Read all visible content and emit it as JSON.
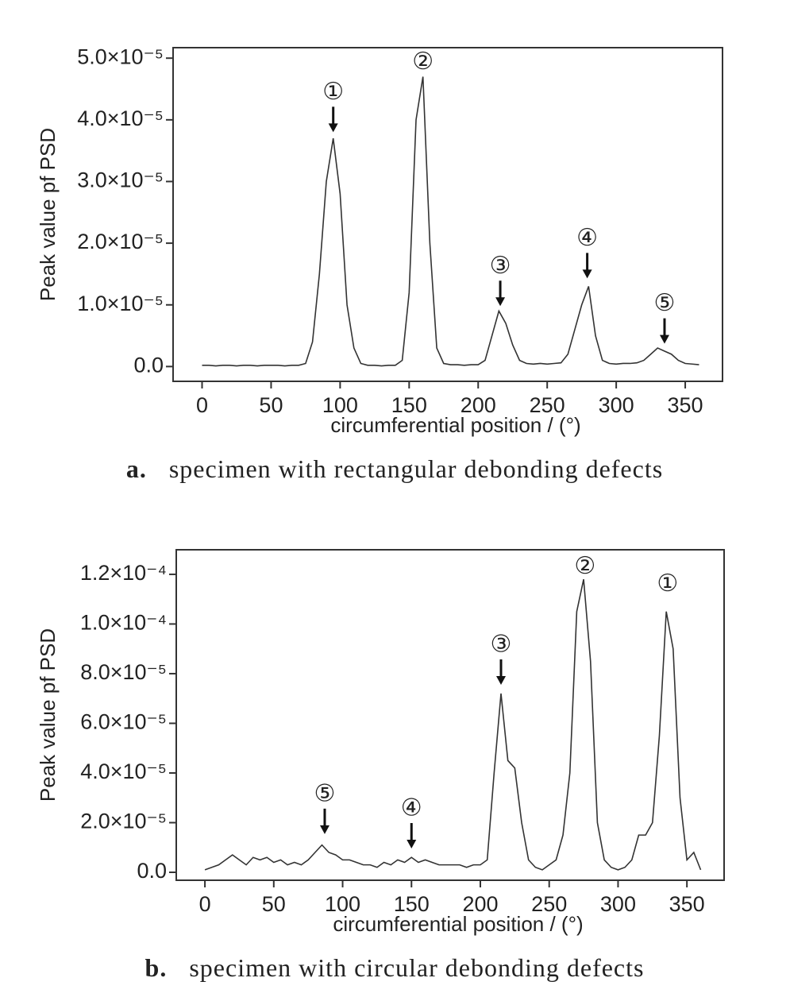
{
  "chart_data": [
    {
      "type": "line",
      "caption_label": "a.",
      "caption": "specimen with rectangular debonding defects",
      "xlabel": "circumferential position / (°)",
      "ylabel": "Peak value pf PSD",
      "xlim": [
        -21,
        377
      ],
      "ylim": [
        -2.4e-06,
        5.17e-05
      ],
      "xticks": [
        0,
        50,
        100,
        150,
        200,
        250,
        300,
        350
      ],
      "yticks": [
        {
          "value": 0,
          "label": "0.0"
        },
        {
          "value": 1e-05,
          "label": "1.0×10⁻⁵"
        },
        {
          "value": 2e-05,
          "label": "2.0×10⁻⁵"
        },
        {
          "value": 3e-05,
          "label": "3.0×10⁻⁵"
        },
        {
          "value": 4e-05,
          "label": "4.0×10⁻⁵"
        },
        {
          "value": 5e-05,
          "label": "5.0×10⁻⁵"
        }
      ],
      "x": [
        0,
        5,
        10,
        15,
        20,
        25,
        30,
        35,
        40,
        45,
        50,
        55,
        60,
        65,
        70,
        75,
        80,
        85,
        90,
        95,
        100,
        105,
        110,
        115,
        120,
        125,
        130,
        135,
        140,
        145,
        150,
        155,
        160,
        165,
        170,
        175,
        180,
        185,
        190,
        195,
        200,
        205,
        210,
        215,
        220,
        225,
        230,
        235,
        240,
        245,
        250,
        255,
        260,
        265,
        270,
        275,
        280,
        285,
        290,
        295,
        300,
        305,
        310,
        315,
        320,
        325,
        330,
        335,
        340,
        345,
        350,
        355,
        360
      ],
      "series": [
        {
          "color": "#333333",
          "values": [
            2e-07,
            2e-07,
            1e-07,
            2e-07,
            2e-07,
            1e-07,
            2e-07,
            2e-07,
            1e-07,
            2e-07,
            2e-07,
            2e-07,
            1e-07,
            2e-07,
            2e-07,
            5e-07,
            4e-06,
            1.5e-05,
            3e-05,
            3.7e-05,
            2.8e-05,
            1e-05,
            3e-06,
            5e-07,
            2e-07,
            2e-07,
            1e-07,
            2e-07,
            2e-07,
            1e-06,
            1.2e-05,
            4e-05,
            4.7e-05,
            2e-05,
            3e-06,
            5e-07,
            3e-07,
            3e-07,
            2e-07,
            3e-07,
            3e-07,
            1e-06,
            5e-06,
            9e-06,
            7e-06,
            3.5e-06,
            1e-06,
            5e-07,
            4e-07,
            5e-07,
            4e-07,
            5e-07,
            6e-07,
            2e-06,
            6e-06,
            1e-05,
            1.3e-05,
            5e-06,
            1e-06,
            5e-07,
            4e-07,
            5e-07,
            5e-07,
            6e-07,
            1e-06,
            2e-06,
            3e-06,
            2.5e-06,
            2e-06,
            1e-06,
            5e-07,
            4e-07,
            3e-07
          ]
        }
      ],
      "annotations": [
        {
          "text": "①",
          "x": 95,
          "y": 3.8e-05,
          "arrow": true
        },
        {
          "text": "②",
          "x": 160,
          "y": 4.93e-05,
          "arrow": false
        },
        {
          "text": "③",
          "x": 216,
          "y": 9.8e-06,
          "arrow": true
        },
        {
          "text": "④",
          "x": 279,
          "y": 1.43e-05,
          "arrow": true
        },
        {
          "text": "⑤",
          "x": 335,
          "y": 3.7e-06,
          "arrow": true
        }
      ]
    },
    {
      "type": "line",
      "caption_label": "b.",
      "caption": "specimen with circular debonding defects",
      "xlabel": "circumferential position / (°)",
      "ylabel": "Peak value pf PSD",
      "xlim": [
        -20.8,
        377
      ],
      "ylim": [
        -3.2e-06,
        0.0001299
      ],
      "xticks": [
        0,
        50,
        100,
        150,
        200,
        250,
        300,
        350
      ],
      "yticks": [
        {
          "value": 0,
          "label": "0.0"
        },
        {
          "value": 2e-05,
          "label": "2.0×10⁻⁵"
        },
        {
          "value": 4e-05,
          "label": "4.0×10⁻⁵"
        },
        {
          "value": 6e-05,
          "label": "6.0×10⁻⁵"
        },
        {
          "value": 8e-05,
          "label": "8.0×10⁻⁵"
        },
        {
          "value": 0.0001,
          "label": "1.0×10⁻⁴"
        },
        {
          "value": 0.00012,
          "label": "1.2×10⁻⁴"
        }
      ],
      "x": [
        0,
        5,
        10,
        15,
        20,
        25,
        30,
        35,
        40,
        45,
        50,
        55,
        60,
        65,
        70,
        75,
        80,
        85,
        90,
        95,
        100,
        105,
        110,
        115,
        120,
        125,
        130,
        135,
        140,
        145,
        150,
        155,
        160,
        165,
        170,
        175,
        180,
        185,
        190,
        195,
        200,
        205,
        210,
        215,
        220,
        225,
        230,
        235,
        240,
        245,
        250,
        255,
        260,
        265,
        270,
        275,
        280,
        285,
        290,
        295,
        300,
        305,
        310,
        315,
        320,
        325,
        330,
        335,
        340,
        345,
        350,
        355,
        360
      ],
      "series": [
        {
          "color": "#333333",
          "values": [
            1e-06,
            2e-06,
            3e-06,
            5e-06,
            7e-06,
            5e-06,
            3e-06,
            6e-06,
            5e-06,
            6e-06,
            4e-06,
            5e-06,
            3e-06,
            4e-06,
            3e-06,
            5e-06,
            8e-06,
            1.1e-05,
            8e-06,
            7e-06,
            5e-06,
            5e-06,
            4e-06,
            3e-06,
            3e-06,
            2e-06,
            4e-06,
            3e-06,
            5e-06,
            4e-06,
            6e-06,
            4e-06,
            5e-06,
            4e-06,
            3e-06,
            3e-06,
            3e-06,
            3e-06,
            2e-06,
            3e-06,
            3e-06,
            5e-06,
            4e-05,
            7.2e-05,
            4.5e-05,
            4.2e-05,
            2e-05,
            5e-06,
            2e-06,
            1e-06,
            3e-06,
            5e-06,
            1.5e-05,
            4e-05,
            0.000105,
            0.000118,
            8.5e-05,
            2e-05,
            5e-06,
            2e-06,
            1e-06,
            2e-06,
            5e-06,
            1.5e-05,
            1.5e-05,
            2e-05,
            5.5e-05,
            0.000105,
            9e-05,
            3e-05,
            5e-06,
            8e-06,
            1e-06
          ]
        }
      ],
      "annotations": [
        {
          "text": "③",
          "x": 215,
          "y": 7.55e-05,
          "arrow": true
        },
        {
          "text": "②",
          "x": 276,
          "y": 0.000123,
          "arrow": false
        },
        {
          "text": "①",
          "x": 336,
          "y": 0.000116,
          "arrow": false
        },
        {
          "text": "⑤",
          "x": 87,
          "y": 1.54e-05,
          "arrow": true
        },
        {
          "text": "④",
          "x": 150,
          "y": 9.6e-06,
          "arrow": true
        }
      ]
    }
  ]
}
